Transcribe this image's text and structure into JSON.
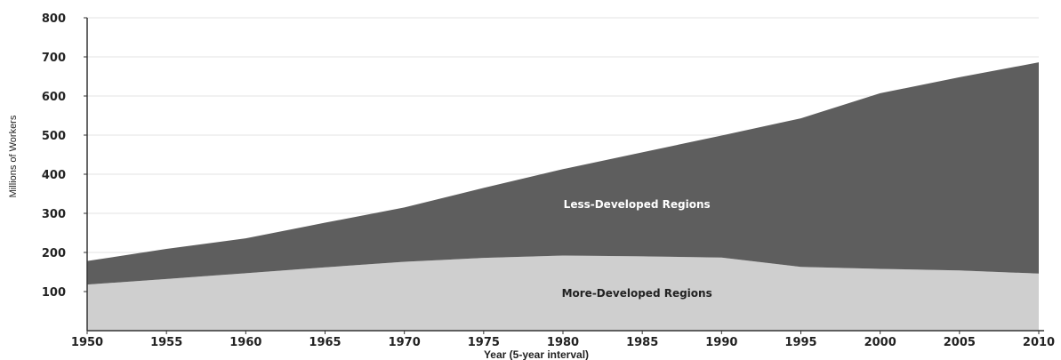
{
  "chart_data": {
    "type": "area",
    "stacked": true,
    "title": "",
    "xlabel": "Year (5-year interval)",
    "ylabel": "Millions of Workers",
    "x": [
      1950,
      1955,
      1960,
      1965,
      1970,
      1975,
      1980,
      1985,
      1990,
      1995,
      2000,
      2005,
      2010
    ],
    "x_ticks": [
      "1950",
      "1955",
      "1960",
      "1965",
      "1970",
      "1975",
      "1980",
      "1985",
      "1990",
      "1995",
      "2000",
      "2005",
      "2010"
    ],
    "y_ticks": [
      "100",
      "200",
      "300",
      "400",
      "500",
      "600",
      "700",
      "800"
    ],
    "ylim": [
      0,
      800
    ],
    "xlim": [
      1950,
      2010
    ],
    "grid": "horizontal",
    "series": [
      {
        "name": "More-Developed Regions",
        "values": [
          118,
          132,
          147,
          162,
          176,
          186,
          192,
          190,
          187,
          163,
          158,
          154,
          146
        ],
        "color": "#cfcfcf",
        "label_color": "#222222"
      },
      {
        "name": "Less-Developed Regions",
        "values": [
          60,
          77,
          89,
          114,
          139,
          179,
          221,
          266,
          312,
          380,
          449,
          494,
          540
        ],
        "color": "#5e5e5e",
        "label_color": "#ffffff"
      }
    ]
  }
}
